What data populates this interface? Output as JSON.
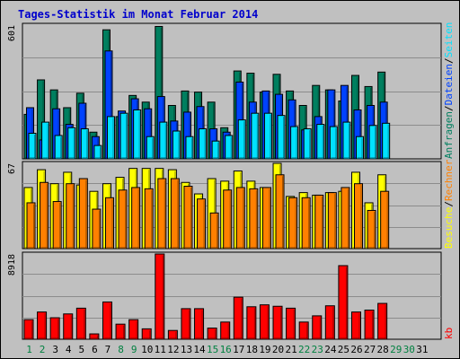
{
  "title": "Tages-Statistik im Monat Februar 2014",
  "colors": {
    "background": "#c0c0c0",
    "panel": "#c0c0c0",
    "grid": "#8c8c8c",
    "title": "#0000cc",
    "anfragen": "#007f5f",
    "dateien": "#0042ff",
    "seiten": "#00e1ff",
    "besuche": "#ffff00",
    "rechner": "#ff8000",
    "kb": "#ff0000",
    "separator": "#000000",
    "weekday_label": "#000000",
    "weekend_label": "#008040"
  },
  "chart_data": [
    {
      "type": "bar",
      "panel": "top",
      "ymax_label": "601",
      "ymax": 601,
      "categories": [
        "1",
        "2",
        "3",
        "4",
        "5",
        "6",
        "7",
        "8",
        "9",
        "10",
        "11",
        "12",
        "13",
        "14",
        "15",
        "16",
        "17",
        "18",
        "19",
        "20",
        "21",
        "22",
        "23",
        "24",
        "25",
        "26",
        "27",
        "28"
      ],
      "series": [
        {
          "key": "anfragen",
          "name": "Anfragen",
          "values": [
            200,
            355,
            310,
            230,
            295,
            120,
            580,
            190,
            285,
            255,
            595,
            240,
            305,
            300,
            255,
            140,
            395,
            385,
            300,
            380,
            305,
            240,
            330,
            310,
            260,
            375,
            325,
            390
          ]
        },
        {
          "key": "dateien",
          "name": "Dateien",
          "values": [
            230,
            85,
            225,
            155,
            250,
            100,
            485,
            215,
            270,
            225,
            280,
            170,
            210,
            235,
            135,
            120,
            345,
            255,
            305,
            290,
            265,
            130,
            190,
            310,
            330,
            220,
            240,
            255
          ]
        },
        {
          "key": "seiten",
          "name": "Seiten",
          "values": [
            115,
            165,
            105,
            140,
            135,
            60,
            190,
            205,
            220,
            100,
            165,
            125,
            100,
            135,
            80,
            105,
            175,
            205,
            205,
            195,
            145,
            135,
            155,
            145,
            165,
            100,
            150,
            160
          ]
        }
      ]
    },
    {
      "type": "bar",
      "panel": "middle",
      "ymax_label": "67",
      "ymax": 67,
      "categories": [
        "1",
        "2",
        "3",
        "4",
        "5",
        "6",
        "7",
        "8",
        "9",
        "10",
        "11",
        "12",
        "13",
        "14",
        "15",
        "16",
        "17",
        "18",
        "19",
        "20",
        "21",
        "22",
        "23",
        "24",
        "25",
        "26",
        "27",
        "28"
      ],
      "series": [
        {
          "key": "besuche",
          "name": "Besuche",
          "values": [
            48,
            62,
            51,
            60,
            50,
            45,
            51,
            56,
            63,
            63,
            63,
            62,
            52,
            43,
            55,
            53,
            61,
            53,
            48,
            67,
            41,
            44,
            42,
            44,
            45,
            60,
            36,
            58
          ]
        },
        {
          "key": "rechner",
          "name": "Rechner",
          "values": [
            36,
            52,
            37,
            51,
            55,
            31,
            40,
            46,
            48,
            47,
            55,
            55,
            49,
            39,
            28,
            46,
            48,
            47,
            48,
            58,
            40,
            40,
            42,
            44,
            48,
            51,
            30,
            45
          ]
        }
      ]
    },
    {
      "type": "bar",
      "panel": "bottom",
      "ymax_label": "8918",
      "ymax": 8918,
      "categories": [
        "1",
        "2",
        "3",
        "4",
        "5",
        "6",
        "7",
        "8",
        "9",
        "10",
        "11",
        "12",
        "13",
        "14",
        "15",
        "16",
        "17",
        "18",
        "19",
        "20",
        "21",
        "22",
        "23",
        "24",
        "25",
        "26",
        "27",
        "28"
      ],
      "series": [
        {
          "key": "kb",
          "name": "kb",
          "values": [
            2050,
            2850,
            2250,
            2650,
            3250,
            560,
            3900,
            1580,
            2050,
            1090,
            8918,
            920,
            3200,
            3200,
            1170,
            1800,
            4400,
            3400,
            3600,
            3450,
            3250,
            1800,
            2450,
            3500,
            7700,
            2850,
            3050,
            3750
          ]
        }
      ]
    }
  ],
  "x_labels": {
    "days": [
      "1",
      "2",
      "3",
      "4",
      "5",
      "6",
      "7",
      "8",
      "9",
      "10",
      "11",
      "12",
      "13",
      "14",
      "15",
      "16",
      "17",
      "18",
      "19",
      "20",
      "21",
      "22",
      "23",
      "24",
      "25",
      "26",
      "27",
      "28",
      "29",
      "30",
      "31"
    ],
    "weekend": [
      "1",
      "2",
      "8",
      "9",
      "15",
      "16",
      "22",
      "23",
      "29",
      "30"
    ]
  },
  "right_legend": {
    "top": [
      {
        "key": "anfragen",
        "text": "Anfragen"
      },
      {
        "key": "separator",
        "text": "/"
      },
      {
        "key": "dateien",
        "text": "Dateien"
      },
      {
        "key": "separator",
        "text": "/"
      },
      {
        "key": "seiten",
        "text": "Seiten"
      }
    ],
    "middle": [
      {
        "key": "besuche",
        "text": "Besuche"
      },
      {
        "key": "separator",
        "text": "/"
      },
      {
        "key": "rechner",
        "text": "Rechner"
      }
    ],
    "bottom": [
      {
        "key": "kb",
        "text": "kb"
      }
    ]
  }
}
